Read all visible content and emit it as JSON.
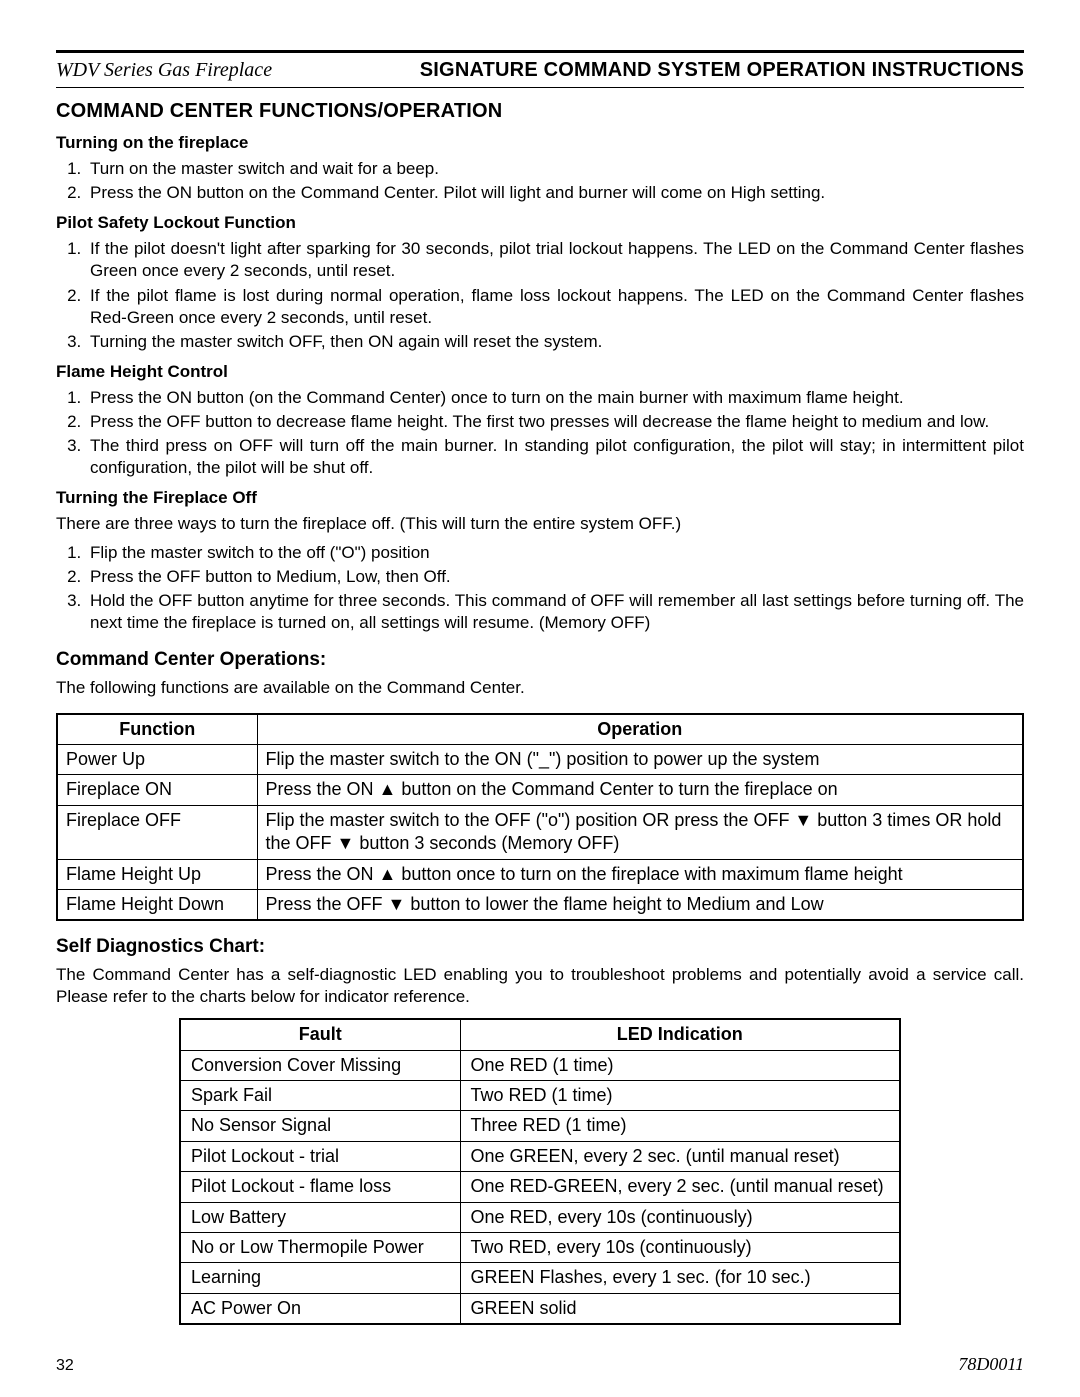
{
  "header": {
    "series": "WDV Series Gas Fireplace",
    "title": "SIGNATURE COMMAND SYSTEM OPERATION INSTRUCTIONS"
  },
  "section_main": "COMMAND CENTER FUNCTIONS/OPERATION",
  "turning_on": {
    "heading": "Turning on the fireplace",
    "items": [
      "Turn on the master switch and wait for a beep.",
      "Press the ON button on the Command Center. Pilot will light and burner will come on High setting."
    ]
  },
  "pilot_safety": {
    "heading": "Pilot Safety Lockout Function",
    "items": [
      "If the pilot doesn't light after sparking for 30 seconds, pilot trial lockout happens. The LED on the Command Center flashes Green once every 2 seconds, until reset.",
      "If the pilot flame is lost during normal operation, flame loss lockout happens. The LED on the Command Center flashes Red-Green once every 2 seconds, until reset.",
      "Turning the master switch OFF, then ON again will reset the system."
    ]
  },
  "flame_height": {
    "heading": "Flame Height Control",
    "items": [
      "Press the ON button (on the Command Center) once to turn on the main burner with maximum flame height.",
      "Press the OFF button to decrease flame height. The first two presses will decrease the flame height to medium and low.",
      "The third press on OFF will turn off the main burner. In standing pilot configuration, the pilot will stay; in intermittent pilot configuration, the pilot will be shut off."
    ]
  },
  "turning_off": {
    "heading": "Turning the Fireplace Off",
    "intro": "There are three ways to turn the fireplace off. (This will turn the entire system OFF.)",
    "items": [
      "Flip the master switch to the off (\"O\") position",
      "Press the OFF button to Medium, Low, then Off.",
      "Hold the OFF button anytime for three seconds. This command of OFF will remember all last settings before turning off. The next time the fireplace is turned on, all settings will resume. (Memory OFF)"
    ]
  },
  "ops_section": {
    "heading": "Command Center Operations:",
    "intro": "The following functions are available on the Command Center."
  },
  "ops_table": {
    "columns": [
      "Function",
      "Operation"
    ],
    "col_widths": [
      "200px",
      "auto"
    ],
    "rows": [
      [
        "Power Up",
        "Flip the master switch to the ON (\"_\") position to power up the system"
      ],
      [
        "Fireplace ON",
        "Press the ON ▲ button on the Command Center to turn the fireplace on"
      ],
      [
        "Fireplace OFF",
        "Flip the master switch to the OFF (\"o\") position OR press the OFF ▼ button 3 times OR hold the OFF ▼ button 3 seconds (Memory OFF)"
      ],
      [
        "Flame Height Up",
        "Press the ON ▲ button once to turn on the fireplace with maximum flame height"
      ],
      [
        "Flame Height Down",
        "Press the OFF ▼ button to lower the flame height to Medium and Low"
      ]
    ]
  },
  "diag_section": {
    "heading": "Self Diagnostics Chart:",
    "intro": "The Command Center has a self-diagnostic LED enabling you to troubleshoot problems and potentially avoid a service call. Please refer to the charts below for indicator reference."
  },
  "diag_table": {
    "columns": [
      "Fault",
      "LED Indication"
    ],
    "col_widths": [
      "280px",
      "440px"
    ],
    "rows": [
      [
        "Conversion Cover Missing",
        "One RED (1 time)"
      ],
      [
        "Spark Fail",
        "Two RED (1 time)"
      ],
      [
        "No Sensor Signal",
        "Three RED (1 time)"
      ],
      [
        "Pilot Lockout - trial",
        "One GREEN, every 2 sec. (until manual reset)"
      ],
      [
        "Pilot Lockout - flame loss",
        "One RED-GREEN, every 2 sec. (until manual reset)"
      ],
      [
        "Low Battery",
        "One RED, every 10s (continuously)"
      ],
      [
        "No or Low Thermopile Power",
        "Two RED, every 10s (continuously)"
      ],
      [
        "Learning",
        "GREEN Flashes, every 1 sec. (for 10 sec.)"
      ],
      [
        "AC Power On",
        "GREEN solid"
      ]
    ]
  },
  "footer": {
    "page": "32",
    "code": "78D0011"
  }
}
